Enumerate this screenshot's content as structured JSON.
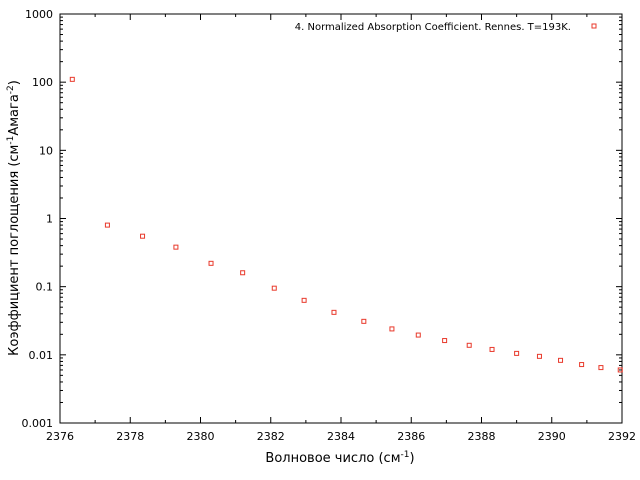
{
  "chart_data": {
    "type": "scatter",
    "title": "",
    "xlabel": {
      "main": "Волновое число (см",
      "sup": "-1",
      "tail": ")"
    },
    "ylabel": {
      "main": "Коэффициент поглощения (см",
      "sup1": "-1",
      "mid": "Амага",
      "sup2": "-2",
      "tail": ")"
    },
    "xlim": [
      2376,
      2392
    ],
    "ylim": [
      0.001,
      1000
    ],
    "yscale": "log",
    "grid": false,
    "legend_position": "top-right",
    "x_ticks": [
      "2376",
      "2378",
      "2380",
      "2382",
      "2384",
      "2386",
      "2388",
      "2390",
      "2392"
    ],
    "y_ticks": [
      "0.001",
      "0.01",
      "0.1",
      "1",
      "10",
      "100",
      "1000"
    ],
    "series": [
      {
        "name": "4. Normalized Absorption Coefficient. Rennes. T=193K.",
        "color": "#e8392b",
        "marker": "square-open",
        "points": [
          [
            2376.35,
            110
          ],
          [
            2377.35,
            0.8
          ],
          [
            2378.35,
            0.55
          ],
          [
            2379.3,
            0.38
          ],
          [
            2380.3,
            0.22
          ],
          [
            2381.2,
            0.16
          ],
          [
            2382.1,
            0.095
          ],
          [
            2382.95,
            0.063
          ],
          [
            2383.8,
            0.042
          ],
          [
            2384.65,
            0.031
          ],
          [
            2385.45,
            0.024
          ],
          [
            2386.2,
            0.0195
          ],
          [
            2386.95,
            0.0162
          ],
          [
            2387.65,
            0.0138
          ],
          [
            2388.3,
            0.012
          ],
          [
            2389.0,
            0.0105
          ],
          [
            2389.65,
            0.0095
          ],
          [
            2390.25,
            0.0083
          ],
          [
            2390.85,
            0.0072
          ],
          [
            2391.4,
            0.0065
          ],
          [
            2391.95,
            0.006
          ]
        ]
      }
    ]
  }
}
